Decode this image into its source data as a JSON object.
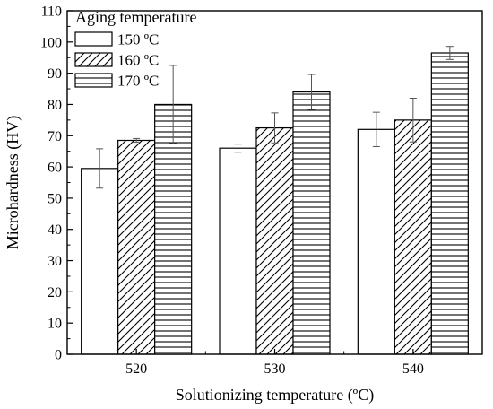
{
  "chart_data": {
    "type": "bar",
    "xlabel": "Solutionizing temperature (ºC)",
    "ylabel": "Microhardness (HV)",
    "categories": [
      "520",
      "530",
      "540"
    ],
    "ylim": [
      0,
      110
    ],
    "yticks": [
      "0",
      "10",
      "20",
      "30",
      "40",
      "50",
      "60",
      "70",
      "80",
      "90",
      "100",
      "110"
    ],
    "legend": {
      "title": "Aging temperature",
      "placement": "top-left"
    },
    "series": [
      {
        "name": "150 ºC",
        "pattern": "none",
        "values": [
          59.5,
          66.0,
          72.0
        ],
        "errors": [
          6.3,
          1.3,
          5.5
        ]
      },
      {
        "name": "160 ºC",
        "pattern": "diagonal-hatch",
        "values": [
          68.5,
          72.5,
          75.0
        ],
        "errors": [
          0.6,
          4.8,
          7.0
        ]
      },
      {
        "name": "170 ºC",
        "pattern": "horizontal-lines",
        "values": [
          80.0,
          84.0,
          96.5
        ],
        "errors": [
          12.5,
          5.6,
          2.1
        ]
      }
    ]
  }
}
